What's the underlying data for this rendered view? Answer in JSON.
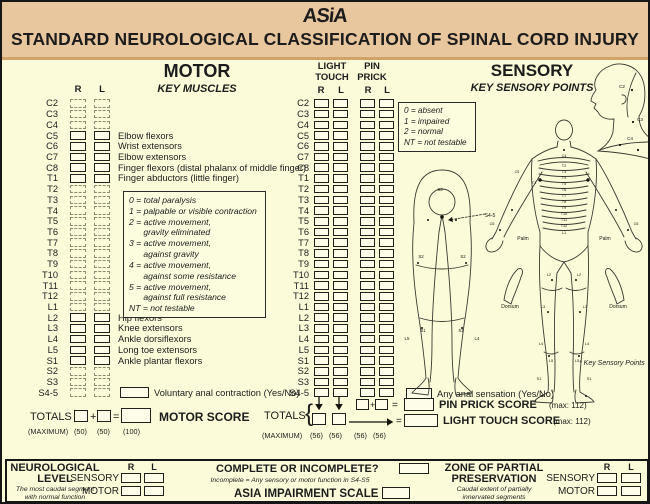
{
  "header": {
    "logo": "ASiA",
    "title": "STANDARD NEUROLOGICAL CLASSIFICATION OF SPINAL CORD INJURY"
  },
  "motor": {
    "title": "MOTOR",
    "subtitle": "KEY MUSCLES",
    "r": "R",
    "l": "L",
    "rows": [
      {
        "level": "C2",
        "style": "dashed",
        "muscle": ""
      },
      {
        "level": "C3",
        "style": "dashed",
        "muscle": ""
      },
      {
        "level": "C4",
        "style": "dashed",
        "muscle": ""
      },
      {
        "level": "C5",
        "style": "solid",
        "muscle": "Elbow flexors"
      },
      {
        "level": "C6",
        "style": "solid",
        "muscle": "Wrist extensors"
      },
      {
        "level": "C7",
        "style": "solid",
        "muscle": "Elbow extensors"
      },
      {
        "level": "C8",
        "style": "solid",
        "muscle": "Finger flexors (distal phalanx of middle finger)"
      },
      {
        "level": "T1",
        "style": "solid",
        "muscle": "Finger abductors (little finger)"
      },
      {
        "level": "T2",
        "style": "dashed",
        "muscle": ""
      },
      {
        "level": "T3",
        "style": "dashed",
        "muscle": ""
      },
      {
        "level": "T4",
        "style": "dashed",
        "muscle": ""
      },
      {
        "level": "T5",
        "style": "dashed",
        "muscle": ""
      },
      {
        "level": "T6",
        "style": "dashed",
        "muscle": ""
      },
      {
        "level": "T7",
        "style": "dashed",
        "muscle": ""
      },
      {
        "level": "T8",
        "style": "dashed",
        "muscle": ""
      },
      {
        "level": "T9",
        "style": "dashed",
        "muscle": ""
      },
      {
        "level": "T10",
        "style": "dashed",
        "muscle": ""
      },
      {
        "level": "T11",
        "style": "dashed",
        "muscle": ""
      },
      {
        "level": "T12",
        "style": "dashed",
        "muscle": ""
      },
      {
        "level": "L1",
        "style": "dashed",
        "muscle": ""
      },
      {
        "level": "L2",
        "style": "solid",
        "muscle": "Hip flexors"
      },
      {
        "level": "L3",
        "style": "solid",
        "muscle": "Knee extensors"
      },
      {
        "level": "L4",
        "style": "solid",
        "muscle": "Ankle dorsiflexors"
      },
      {
        "level": "L5",
        "style": "solid",
        "muscle": "Long toe extensors"
      },
      {
        "level": "S1",
        "style": "solid",
        "muscle": "Ankle plantar flexors"
      },
      {
        "level": "S2",
        "style": "dashed",
        "muscle": ""
      },
      {
        "level": "S3",
        "style": "dashed",
        "muscle": ""
      },
      {
        "level": "S4-5",
        "style": "dashed",
        "muscle": ""
      }
    ],
    "legend": [
      "0 = total paralysis",
      "1 = palpable or visible contraction",
      "2 = active movement,",
      "      gravity eliminated",
      "3 = active movement,",
      "      against gravity",
      "4 = active movement,",
      "      against some resistance",
      "5 = active movement,",
      "      against full resistance",
      "NT = not testable"
    ],
    "vac_label": "Voluntary anal contraction (Yes/No)",
    "totals_label": "TOTALS",
    "plus": "+",
    "equals": "=",
    "score_label": "MOTOR SCORE",
    "maximum_label": "(MAXIMUM)",
    "max50": "(50)",
    "max100": "(100)"
  },
  "sensory_grid": {
    "lt_line1": "LIGHT",
    "lt_line2": "TOUCH",
    "pp_line1": "PIN",
    "pp_line2": "PRICK",
    "r": "R",
    "l": "L",
    "levels": [
      "C2",
      "C3",
      "C4",
      "C5",
      "C6",
      "C7",
      "C8",
      "T1",
      "T2",
      "T3",
      "T4",
      "T5",
      "T6",
      "T7",
      "T8",
      "T9",
      "T10",
      "T11",
      "T12",
      "L1",
      "L2",
      "L3",
      "L4",
      "L5",
      "S1",
      "S2",
      "S3",
      "S4-5"
    ],
    "legend": [
      "0 = absent",
      "1 = impaired",
      "2 = normal",
      "NT = not testable"
    ],
    "anal_label": "Any anal sensation (Yes/No)",
    "totals_label": "TOTALS",
    "brace": "{",
    "plus": "+",
    "equals": "=",
    "pp_score_label": "PIN PRICK SCORE",
    "lt_score_label": "LIGHT TOUCH SCORE",
    "max112": "(max: 112)",
    "maximum_label": "(MAXIMUM)",
    "max56": "(56)"
  },
  "sensory": {
    "title": "SENSORY",
    "subtitle": "KEY SENSORY POINTS",
    "key_points_note": "* Key Sensory Points",
    "head_labels": [
      "C2",
      "C3",
      "C4"
    ],
    "back_labels": [
      "S3",
      "S2",
      "S2",
      "S1",
      "S1",
      "L5",
      "L4",
      "S4-5"
    ],
    "front_labels": [
      "C4",
      "T2",
      "T3",
      "T4",
      "T5",
      "T6",
      "T7",
      "T8",
      "T9",
      "T10",
      "T11",
      "T12",
      "L1",
      "C5",
      "T1",
      "C6",
      "C6",
      "Palm",
      "Palm",
      "L2",
      "L2",
      "L3",
      "L3",
      "L4",
      "L4",
      "L5",
      "L5",
      "S1",
      "S1",
      "Dorsum",
      "Dorsum"
    ]
  },
  "footer": {
    "neuro_line1": "NEUROLOGICAL",
    "neuro_line2": "LEVEL",
    "neuro_note1": "The most caudal segment",
    "neuro_note2": "with normal function",
    "sensory_label": "SENSORY",
    "motor_label": "MOTOR",
    "r": "R",
    "l": "L",
    "complete_label": "COMPLETE OR INCOMPLETE?",
    "incomplete_note": "Incomplete = Any sensory or motor function in S4-S5",
    "ais_label": "ASIA IMPAIRMENT SCALE",
    "zpp_line1": "ZONE OF PARTIAL",
    "zpp_line2": "PRESERVATION",
    "zpp_note1": "Caudal extent of partially",
    "zpp_note2": "innervated segments"
  },
  "colors": {
    "header_bg": "#E9C79E",
    "body_bg": "#FBFBD9",
    "ink": "#1c1c1c"
  }
}
